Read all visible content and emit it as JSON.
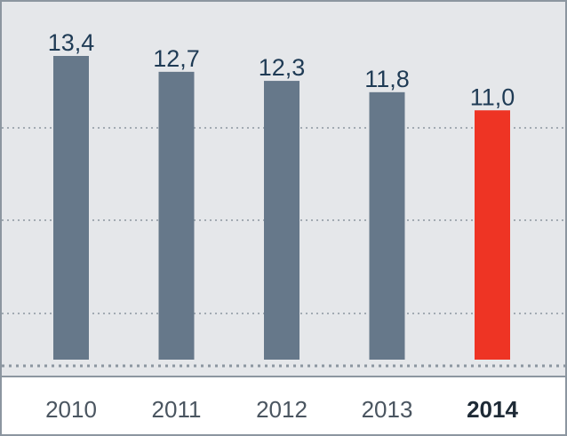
{
  "chart_data": {
    "type": "bar",
    "title": "",
    "xlabel": "",
    "ylabel": "",
    "categories": [
      "2010",
      "2011",
      "2012",
      "2013",
      "2014"
    ],
    "values": [
      13.4,
      12.7,
      12.3,
      11.8,
      11.0
    ],
    "value_labels": [
      "13,4",
      "12,7",
      "12,3",
      "11,8",
      "11,0"
    ],
    "highlight_index": 4,
    "ylim": [
      0,
      15
    ],
    "grid": "horizontal dotted",
    "colors": {
      "bar": "#66788a",
      "highlight": "#ee3424",
      "plot_background": "#e5e7ea",
      "axis_background": "#ffffff",
      "border": "#8c96a0",
      "grid": "#8c96a0"
    }
  }
}
